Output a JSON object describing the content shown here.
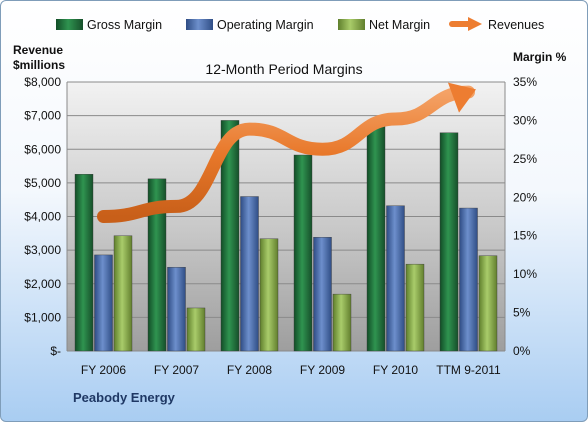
{
  "chart_data": {
    "type": "bar",
    "title": "12-Month Period Margins",
    "footer": "Peabody Energy",
    "categories": [
      "FY 2006",
      "FY 2007",
      "FY 2008",
      "FY 2009",
      "FY 2010",
      "TTM 9-2011"
    ],
    "series": [
      {
        "name": "Gross Margin",
        "axis": "right",
        "values": [
          23.0,
          22.4,
          30.0,
          25.5,
          29.3,
          28.4
        ],
        "color": "#21733d"
      },
      {
        "name": "Operating Margin",
        "axis": "right",
        "values": [
          12.5,
          10.9,
          20.1,
          14.8,
          18.9,
          18.6
        ],
        "color": "#4a6fae"
      },
      {
        "name": "Net Margin",
        "axis": "right",
        "values": [
          15.0,
          5.6,
          14.6,
          7.4,
          11.3,
          12.4
        ],
        "color": "#8bb04c"
      }
    ],
    "line_series": {
      "name": "Revenues",
      "axis": "left",
      "values": [
        4000,
        4300,
        6600,
        6000,
        6900,
        7700
      ],
      "color": "#ed7d31"
    },
    "left_axis": {
      "title_line1": "Revenue",
      "title_line2": "$millions",
      "ylim": [
        0,
        8000
      ],
      "tick_labels": [
        "$-",
        "$1,000",
        "$2,000",
        "$3,000",
        "$4,000",
        "$5,000",
        "$6,000",
        "$7,000",
        "$8,000"
      ]
    },
    "right_axis": {
      "title": "Margin %",
      "ylim": [
        0,
        35
      ],
      "tick_labels": [
        "0%",
        "5%",
        "10%",
        "15%",
        "20%",
        "25%",
        "30%",
        "35%"
      ]
    },
    "legend_position": "top",
    "grid": true
  }
}
